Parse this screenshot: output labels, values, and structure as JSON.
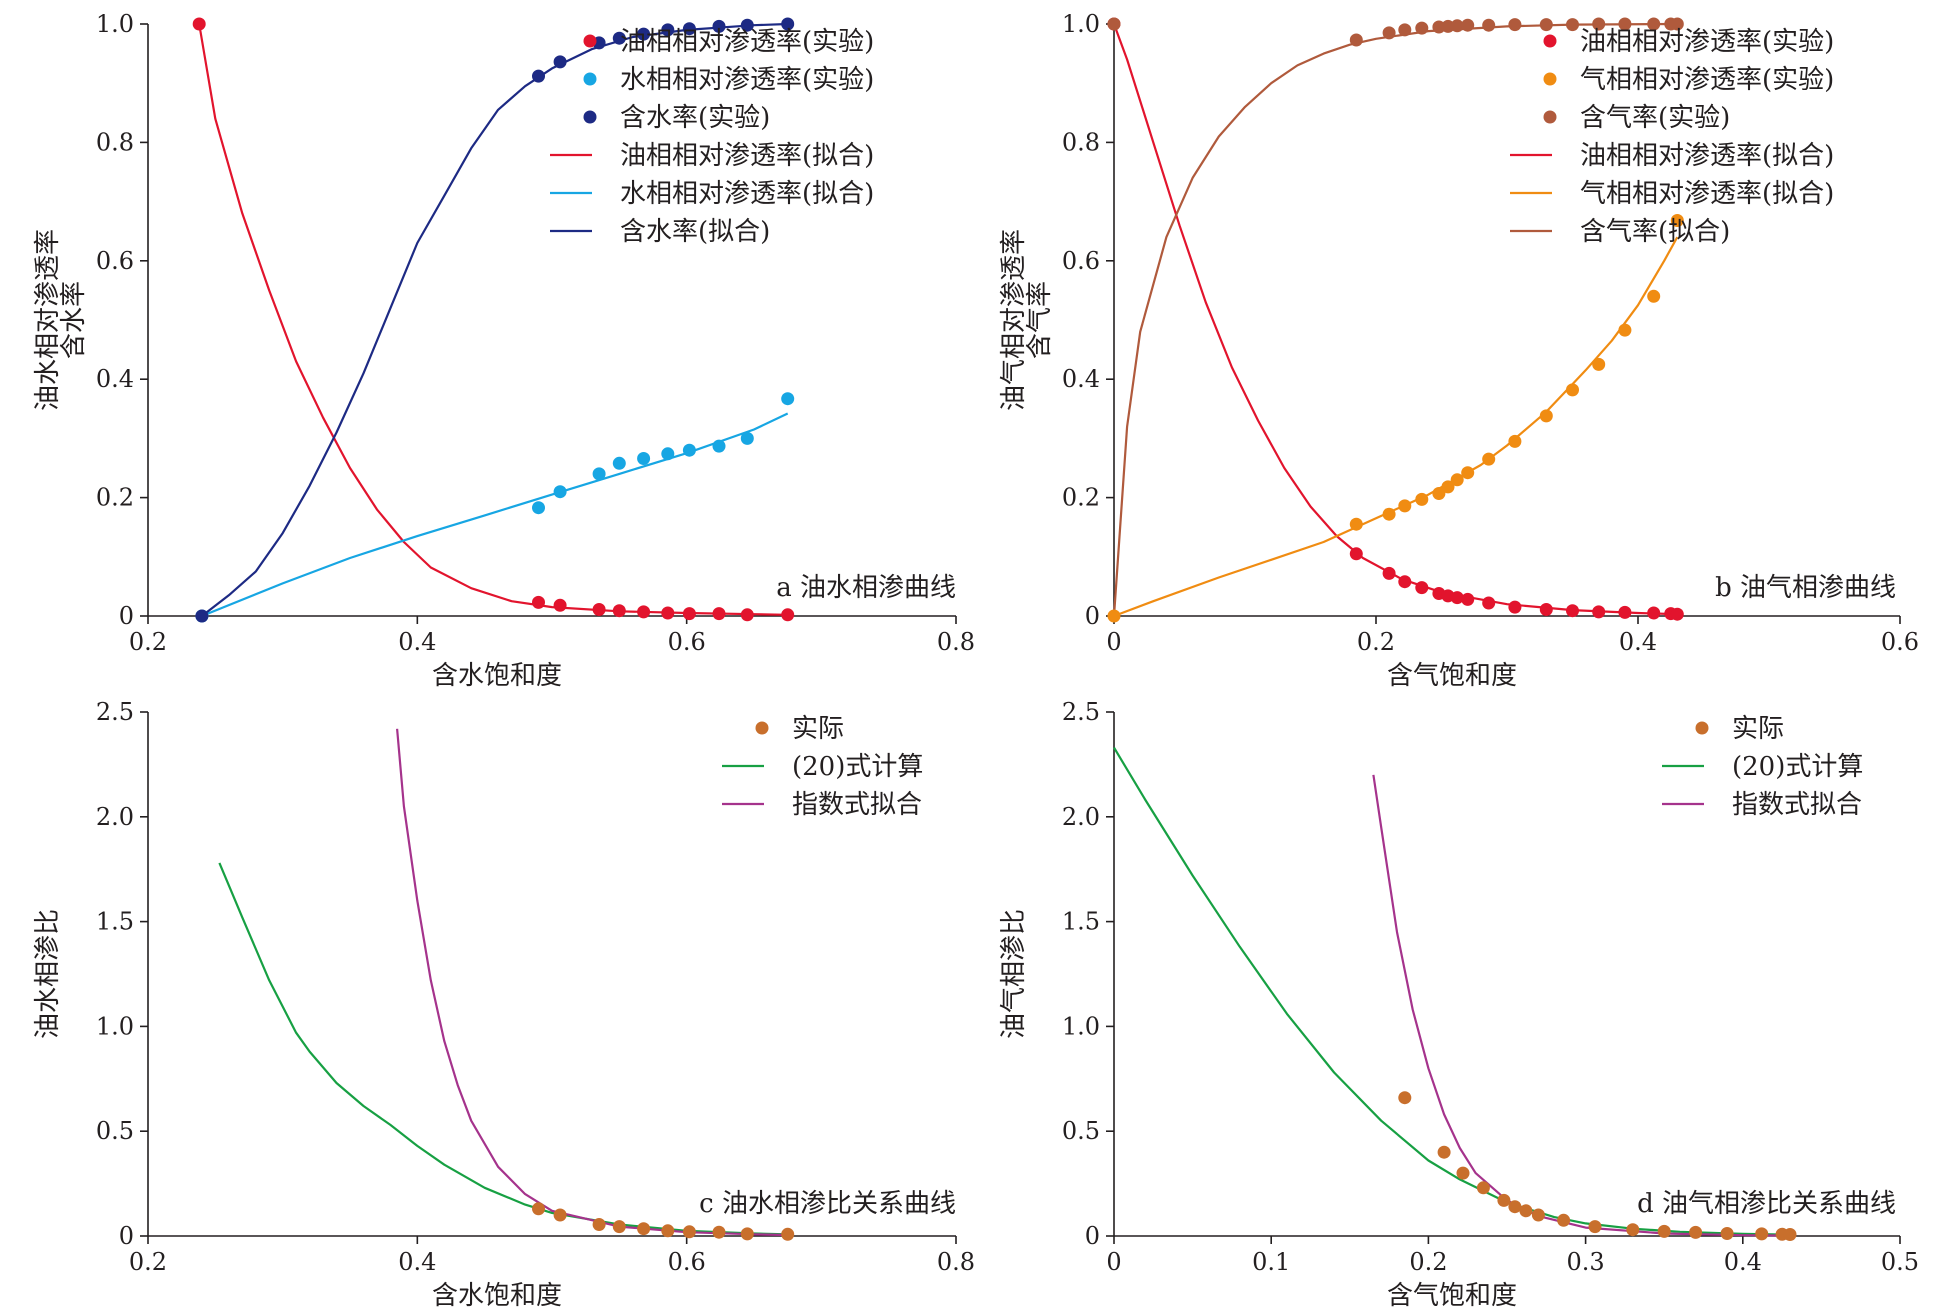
{
  "chart_data": [
    {
      "type": "scatter",
      "panel": "a",
      "caption": "a 油水相渗曲线",
      "xlabel": "含水饱和度",
      "ylabel_lines": [
        "油水相对渗透率",
        "含水率"
      ],
      "xlim": [
        0.2,
        0.8
      ],
      "ylim": [
        0,
        1.0
      ],
      "xticks": [
        "0.2",
        "0.4",
        "0.6",
        "0.8"
      ],
      "yticks": [
        "0",
        "0.2",
        "0.4",
        "0.6",
        "0.8",
        "1.0"
      ],
      "xtick_values": [
        0.2,
        0.4,
        0.6,
        0.8
      ],
      "ytick_values": [
        0,
        0.2,
        0.4,
        0.6,
        0.8,
        1.0
      ],
      "legend_position": "top-right",
      "series": [
        {
          "name": "油相相对渗透率(实验)",
          "kind": "points",
          "color": "#e2142d",
          "x": [
            0.238,
            0.49,
            0.506,
            0.535,
            0.55,
            0.568,
            0.586,
            0.602,
            0.624,
            0.645,
            0.675
          ],
          "y": [
            1.0,
            0.023,
            0.018,
            0.011,
            0.009,
            0.007,
            0.005,
            0.004,
            0.004,
            0.002,
            0.002
          ]
        },
        {
          "name": "水相相对渗透率(实验)",
          "kind": "points",
          "color": "#17a6e3",
          "x": [
            0.24,
            0.49,
            0.506,
            0.535,
            0.55,
            0.568,
            0.586,
            0.602,
            0.624,
            0.645,
            0.675
          ],
          "y": [
            0.0,
            0.183,
            0.21,
            0.24,
            0.258,
            0.266,
            0.274,
            0.28,
            0.287,
            0.3,
            0.367
          ]
        },
        {
          "name": "含水率(实验)",
          "kind": "points",
          "color": "#1d2a84",
          "x": [
            0.24,
            0.49,
            0.506,
            0.535,
            0.55,
            0.568,
            0.586,
            0.602,
            0.624,
            0.645,
            0.675
          ],
          "y": [
            0.0,
            0.912,
            0.936,
            0.968,
            0.976,
            0.983,
            0.99,
            0.992,
            0.996,
            0.998,
            1.0
          ]
        },
        {
          "name": "油相相对渗透率(拟合)",
          "kind": "line",
          "color": "#e2142d",
          "x": [
            0.238,
            0.25,
            0.27,
            0.29,
            0.31,
            0.33,
            0.35,
            0.37,
            0.39,
            0.41,
            0.44,
            0.47,
            0.5,
            0.55,
            0.6,
            0.65,
            0.675
          ],
          "y": [
            1.0,
            0.84,
            0.68,
            0.55,
            0.43,
            0.335,
            0.25,
            0.18,
            0.125,
            0.082,
            0.047,
            0.025,
            0.015,
            0.008,
            0.005,
            0.003,
            0.002
          ]
        },
        {
          "name": "水相相对渗透率(拟合)",
          "kind": "line",
          "color": "#17a6e3",
          "x": [
            0.24,
            0.3,
            0.35,
            0.4,
            0.45,
            0.5,
            0.55,
            0.6,
            0.65,
            0.675
          ],
          "y": [
            0.0,
            0.055,
            0.098,
            0.135,
            0.17,
            0.205,
            0.24,
            0.275,
            0.315,
            0.342
          ]
        },
        {
          "name": "含水率(拟合)",
          "kind": "line",
          "color": "#1d2a84",
          "x": [
            0.24,
            0.26,
            0.28,
            0.3,
            0.32,
            0.34,
            0.36,
            0.38,
            0.4,
            0.42,
            0.44,
            0.46,
            0.48,
            0.5,
            0.53,
            0.56,
            0.6,
            0.65,
            0.675
          ],
          "y": [
            0.0,
            0.035,
            0.075,
            0.14,
            0.22,
            0.31,
            0.41,
            0.52,
            0.63,
            0.71,
            0.79,
            0.855,
            0.895,
            0.925,
            0.958,
            0.978,
            0.99,
            0.998,
            1.0
          ]
        }
      ]
    },
    {
      "type": "scatter",
      "panel": "b",
      "caption": "b 油气相渗曲线",
      "xlabel": "含气饱和度",
      "ylabel_lines": [
        "油气相对渗透率",
        "含气率"
      ],
      "xlim": [
        0,
        0.6
      ],
      "ylim": [
        0,
        1.0
      ],
      "xticks": [
        "0",
        "0.2",
        "0.4",
        "0.6"
      ],
      "yticks": [
        "0",
        "0.2",
        "0.4",
        "0.6",
        "0.8",
        "1.0"
      ],
      "xtick_values": [
        0,
        0.2,
        0.4,
        0.6
      ],
      "ytick_values": [
        0,
        0.2,
        0.4,
        0.6,
        0.8,
        1.0
      ],
      "legend_position": "top-right",
      "series": [
        {
          "name": "油相相对渗透率(实验)",
          "kind": "points",
          "color": "#e2142d",
          "x": [
            0.0,
            0.185,
            0.21,
            0.222,
            0.235,
            0.248,
            0.255,
            0.262,
            0.27,
            0.286,
            0.306,
            0.33,
            0.35,
            0.37,
            0.39,
            0.412,
            0.425,
            0.43
          ],
          "y": [
            1.0,
            0.105,
            0.072,
            0.058,
            0.048,
            0.038,
            0.034,
            0.031,
            0.028,
            0.022,
            0.015,
            0.011,
            0.009,
            0.007,
            0.006,
            0.005,
            0.004,
            0.003
          ]
        },
        {
          "name": "气相相对渗透率(实验)",
          "kind": "points",
          "color": "#f08c12",
          "x": [
            0.0,
            0.185,
            0.21,
            0.222,
            0.235,
            0.248,
            0.255,
            0.262,
            0.27,
            0.286,
            0.306,
            0.33,
            0.35,
            0.37,
            0.39,
            0.412,
            0.43
          ],
          "y": [
            0.0,
            0.155,
            0.172,
            0.186,
            0.197,
            0.207,
            0.218,
            0.23,
            0.242,
            0.265,
            0.295,
            0.338,
            0.382,
            0.425,
            0.483,
            0.54,
            0.668
          ]
        },
        {
          "name": "含气率(实验)",
          "kind": "points",
          "color": "#b05a3c",
          "x": [
            0.0,
            0.185,
            0.21,
            0.222,
            0.235,
            0.248,
            0.255,
            0.262,
            0.27,
            0.286,
            0.306,
            0.33,
            0.35,
            0.37,
            0.39,
            0.412,
            0.425,
            0.43
          ],
          "y": [
            1.0,
            0.973,
            0.985,
            0.99,
            0.993,
            0.995,
            0.996,
            0.997,
            0.998,
            0.998,
            0.999,
            0.999,
            0.999,
            1.0,
            1.0,
            1.0,
            1.0,
            1.0
          ]
        },
        {
          "name": "油相相对渗透率(拟合)",
          "kind": "line",
          "color": "#e2142d",
          "x": [
            0.0,
            0.01,
            0.03,
            0.05,
            0.07,
            0.09,
            0.11,
            0.13,
            0.15,
            0.17,
            0.19,
            0.22,
            0.25,
            0.3,
            0.35,
            0.4,
            0.43
          ],
          "y": [
            1.0,
            0.94,
            0.8,
            0.66,
            0.53,
            0.42,
            0.33,
            0.25,
            0.185,
            0.135,
            0.098,
            0.062,
            0.04,
            0.02,
            0.01,
            0.005,
            0.003
          ]
        },
        {
          "name": "气相相对渗透率(拟合)",
          "kind": "line",
          "color": "#f08c12",
          "x": [
            0.0,
            0.03,
            0.08,
            0.12,
            0.16,
            0.2,
            0.24,
            0.28,
            0.3,
            0.33,
            0.36,
            0.38,
            0.4,
            0.42,
            0.43
          ],
          "y": [
            0.0,
            0.025,
            0.065,
            0.095,
            0.125,
            0.165,
            0.205,
            0.255,
            0.288,
            0.345,
            0.415,
            0.465,
            0.525,
            0.6,
            0.64
          ]
        },
        {
          "name": "含气率(拟合)",
          "kind": "line",
          "color": "#b05a3c",
          "x": [
            0.0,
            0.01,
            0.02,
            0.04,
            0.06,
            0.08,
            0.1,
            0.12,
            0.14,
            0.16,
            0.18,
            0.2,
            0.24,
            0.3,
            0.35,
            0.43
          ],
          "y": [
            0.0,
            0.32,
            0.48,
            0.64,
            0.74,
            0.81,
            0.86,
            0.9,
            0.93,
            0.95,
            0.965,
            0.975,
            0.988,
            0.996,
            0.999,
            1.0
          ]
        }
      ]
    },
    {
      "type": "scatter",
      "panel": "c",
      "caption": "c 油水相渗比关系曲线",
      "xlabel": "含水饱和度",
      "ylabel_lines": [
        "油水相渗比"
      ],
      "xlim": [
        0.2,
        0.8
      ],
      "ylim": [
        0,
        2.5
      ],
      "xticks": [
        "0.2",
        "0.4",
        "0.6",
        "0.8"
      ],
      "yticks": [
        "0",
        "0.5",
        "1.0",
        "1.5",
        "2.0",
        "2.5"
      ],
      "xtick_values": [
        0.2,
        0.4,
        0.6,
        0.8
      ],
      "ytick_values": [
        0,
        0.5,
        1.0,
        1.5,
        2.0,
        2.5
      ],
      "legend_position": "top-right",
      "series": [
        {
          "name": "实际",
          "kind": "points",
          "color": "#c86f2c",
          "x": [
            0.49,
            0.506,
            0.535,
            0.55,
            0.568,
            0.586,
            0.602,
            0.624,
            0.645,
            0.675
          ],
          "y": [
            0.13,
            0.1,
            0.055,
            0.045,
            0.035,
            0.025,
            0.02,
            0.018,
            0.01,
            0.008
          ]
        },
        {
          "name": "(20)式计算",
          "kind": "line",
          "color": "#17a043",
          "x": [
            0.253,
            0.27,
            0.29,
            0.31,
            0.32,
            0.34,
            0.36,
            0.38,
            0.4,
            0.42,
            0.45,
            0.48,
            0.5,
            0.55,
            0.6,
            0.65,
            0.675
          ],
          "y": [
            1.78,
            1.52,
            1.22,
            0.97,
            0.88,
            0.73,
            0.62,
            0.53,
            0.43,
            0.34,
            0.23,
            0.15,
            0.11,
            0.055,
            0.025,
            0.012,
            0.008
          ]
        },
        {
          "name": "指数式拟合",
          "kind": "line",
          "color": "#a5338c",
          "x": [
            0.385,
            0.39,
            0.4,
            0.41,
            0.42,
            0.43,
            0.44,
            0.46,
            0.48,
            0.5,
            0.55,
            0.6,
            0.65,
            0.675
          ],
          "y": [
            2.42,
            2.05,
            1.6,
            1.22,
            0.93,
            0.72,
            0.55,
            0.33,
            0.2,
            0.12,
            0.045,
            0.018,
            0.008,
            0.005
          ]
        }
      ]
    },
    {
      "type": "scatter",
      "panel": "d",
      "caption": "d 油气相渗比关系曲线",
      "xlabel": "含气饱和度",
      "ylabel_lines": [
        "油气相渗比"
      ],
      "xlim": [
        0,
        0.5
      ],
      "ylim": [
        0,
        2.5
      ],
      "xticks": [
        "0",
        "0.1",
        "0.2",
        "0.3",
        "0.4",
        "0.5"
      ],
      "yticks": [
        "0",
        "0.5",
        "1.0",
        "1.5",
        "2.0",
        "2.5"
      ],
      "xtick_values": [
        0,
        0.1,
        0.2,
        0.3,
        0.4,
        0.5
      ],
      "ytick_values": [
        0,
        0.5,
        1.0,
        1.5,
        2.0,
        2.5
      ],
      "legend_position": "top-right",
      "series": [
        {
          "name": "实际",
          "kind": "points",
          "color": "#c86f2c",
          "x": [
            0.185,
            0.21,
            0.222,
            0.235,
            0.248,
            0.255,
            0.262,
            0.27,
            0.286,
            0.306,
            0.33,
            0.35,
            0.37,
            0.39,
            0.412,
            0.425,
            0.43
          ],
          "y": [
            0.66,
            0.4,
            0.3,
            0.23,
            0.17,
            0.14,
            0.12,
            0.1,
            0.075,
            0.045,
            0.03,
            0.022,
            0.017,
            0.012,
            0.01,
            0.008,
            0.007
          ]
        },
        {
          "name": "(20)式计算",
          "kind": "line",
          "color": "#17a043",
          "x": [
            0.0,
            0.02,
            0.05,
            0.08,
            0.11,
            0.14,
            0.17,
            0.2,
            0.22,
            0.25,
            0.28,
            0.3,
            0.33,
            0.36,
            0.4,
            0.43
          ],
          "y": [
            2.33,
            2.08,
            1.72,
            1.38,
            1.06,
            0.78,
            0.55,
            0.36,
            0.27,
            0.16,
            0.09,
            0.06,
            0.035,
            0.02,
            0.01,
            0.006
          ]
        },
        {
          "name": "指数式拟合",
          "kind": "line",
          "color": "#a5338c",
          "x": [
            0.165,
            0.17,
            0.18,
            0.19,
            0.2,
            0.21,
            0.22,
            0.23,
            0.25,
            0.27,
            0.3,
            0.35,
            0.4,
            0.43
          ],
          "y": [
            2.2,
            1.95,
            1.45,
            1.08,
            0.8,
            0.58,
            0.42,
            0.3,
            0.17,
            0.095,
            0.04,
            0.012,
            0.004,
            0.002
          ]
        }
      ]
    }
  ]
}
